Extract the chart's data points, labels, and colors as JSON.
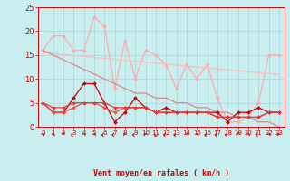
{
  "title": "",
  "xlabel": "Vent moyen/en rafales ( km/h )",
  "ylabel": "",
  "background_color": "#c8eef0",
  "grid_color": "#b0d8dc",
  "xlim": [
    -0.5,
    23.5
  ],
  "ylim": [
    0,
    25
  ],
  "yticks": [
    0,
    5,
    10,
    15,
    20,
    25
  ],
  "xticks": [
    0,
    1,
    2,
    3,
    4,
    5,
    6,
    7,
    8,
    9,
    10,
    11,
    12,
    13,
    14,
    15,
    16,
    17,
    18,
    19,
    20,
    21,
    22,
    23
  ],
  "line1_color": "#ffaaaa",
  "line1_x": [
    0,
    1,
    2,
    3,
    4,
    5,
    6,
    7,
    8,
    9,
    10,
    11,
    12,
    13,
    14,
    15,
    16,
    17,
    18,
    19,
    20,
    21,
    22,
    23
  ],
  "line1_y": [
    16,
    19,
    19,
    16,
    16,
    23,
    21,
    8,
    18,
    10,
    16,
    15,
    13,
    8,
    13,
    10,
    13,
    6,
    1,
    1,
    2,
    5,
    15,
    15
  ],
  "line2_color": "#ffbbbb",
  "line2_x": [
    0,
    1,
    2,
    3,
    4,
    5,
    6,
    7,
    8,
    9,
    10,
    11,
    12,
    13,
    14,
    15,
    16,
    17,
    18,
    19,
    20,
    21,
    22,
    23
  ],
  "line2_y": [
    15.5,
    15.3,
    15.1,
    14.9,
    14.7,
    14.5,
    14.3,
    14.1,
    13.9,
    13.7,
    13.5,
    13.3,
    13.1,
    12.9,
    12.7,
    12.5,
    12.3,
    12.1,
    11.9,
    11.7,
    11.5,
    11.3,
    11.1,
    10.9
  ],
  "line3_color": "#dd8888",
  "line3_x": [
    0,
    1,
    2,
    3,
    4,
    5,
    6,
    7,
    8,
    9,
    10,
    11,
    12,
    13,
    14,
    15,
    16,
    17,
    18,
    19,
    20,
    21,
    22,
    23
  ],
  "line3_y": [
    16,
    15,
    14,
    13,
    12,
    11,
    10,
    9,
    8,
    7,
    7,
    6,
    6,
    5,
    5,
    4,
    4,
    3,
    3,
    2,
    2,
    1,
    1,
    0
  ],
  "line4_color": "#cc0000",
  "line4_x": [
    0,
    1,
    2,
    3,
    4,
    5,
    6,
    7,
    8,
    9,
    10,
    11,
    12,
    13,
    14,
    15,
    16,
    17,
    18,
    19,
    20,
    21,
    22,
    23
  ],
  "line4_y": [
    5,
    3,
    3,
    6,
    9,
    9,
    5,
    1,
    3,
    6,
    4,
    3,
    4,
    3,
    3,
    3,
    3,
    3,
    1,
    3,
    3,
    4,
    3,
    3
  ],
  "line5_color": "#ff4444",
  "line5_x": [
    0,
    1,
    2,
    3,
    4,
    5,
    6,
    7,
    8,
    9,
    10,
    11,
    12,
    13,
    14,
    15,
    16,
    17,
    18,
    19,
    20,
    21,
    22,
    23
  ],
  "line5_y": [
    5,
    3,
    3,
    4,
    5,
    5,
    4,
    3,
    4,
    4,
    4,
    3,
    3,
    3,
    3,
    3,
    3,
    2,
    2,
    2,
    2,
    2,
    3,
    3
  ],
  "line6_color": "#ee3333",
  "line6_x": [
    0,
    1,
    2,
    3,
    4,
    5,
    6,
    7,
    8,
    9,
    10,
    11,
    12,
    13,
    14,
    15,
    16,
    17,
    18,
    19,
    20,
    21,
    22,
    23
  ],
  "line6_y": [
    5,
    4,
    4,
    5,
    5,
    5,
    5,
    4,
    4,
    4,
    4,
    3,
    3,
    3,
    3,
    3,
    3,
    2,
    2,
    2,
    2,
    2,
    3,
    3
  ],
  "arrow_color": "#cc0000",
  "arrow_angles": [
    45,
    45,
    0,
    270,
    45,
    45,
    270,
    270,
    315,
    270,
    315,
    225,
    270,
    270,
    45,
    45,
    270,
    270,
    270,
    0,
    45,
    270,
    45,
    315
  ],
  "tick_color": "#cc0000",
  "tick_fontsize": 5,
  "xlabel_fontsize": 6
}
